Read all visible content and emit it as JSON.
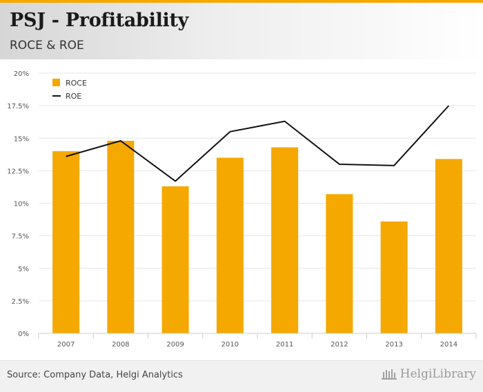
{
  "header": {
    "title": "PSJ - Profitability",
    "subtitle": "ROCE & ROE"
  },
  "footer": {
    "source": "Source: Company Data, Helgi Analytics",
    "logo_text": "HelgiLibrary"
  },
  "colors": {
    "bar": "#f5a800",
    "line": "#111111",
    "accent": "#f5a800"
  },
  "chart_data": {
    "type": "bar",
    "title": "PSJ - Profitability",
    "subtitle": "ROCE & ROE",
    "xlabel": "",
    "ylabel": "",
    "categories": [
      "2007",
      "2008",
      "2009",
      "2010",
      "2011",
      "2012",
      "2013",
      "2014"
    ],
    "series": [
      {
        "name": "ROCE",
        "type": "bar",
        "values": [
          14.0,
          14.8,
          11.3,
          13.5,
          14.3,
          10.7,
          8.6,
          13.4
        ]
      },
      {
        "name": "ROE",
        "type": "line",
        "values": [
          13.6,
          14.8,
          11.7,
          15.5,
          16.3,
          13.0,
          12.9,
          17.5
        ]
      }
    ],
    "ylim": [
      0,
      20
    ],
    "yticks": [
      0,
      2.5,
      5,
      7.5,
      10,
      12.5,
      15,
      17.5,
      20
    ],
    "ytick_labels": [
      "0%",
      "2.5%",
      "5%",
      "7.5%",
      "10%",
      "12.5%",
      "15%",
      "17.5%",
      "20%"
    ],
    "legend": [
      "ROCE",
      "ROE"
    ],
    "legend_position": "top-left",
    "grid": true
  }
}
